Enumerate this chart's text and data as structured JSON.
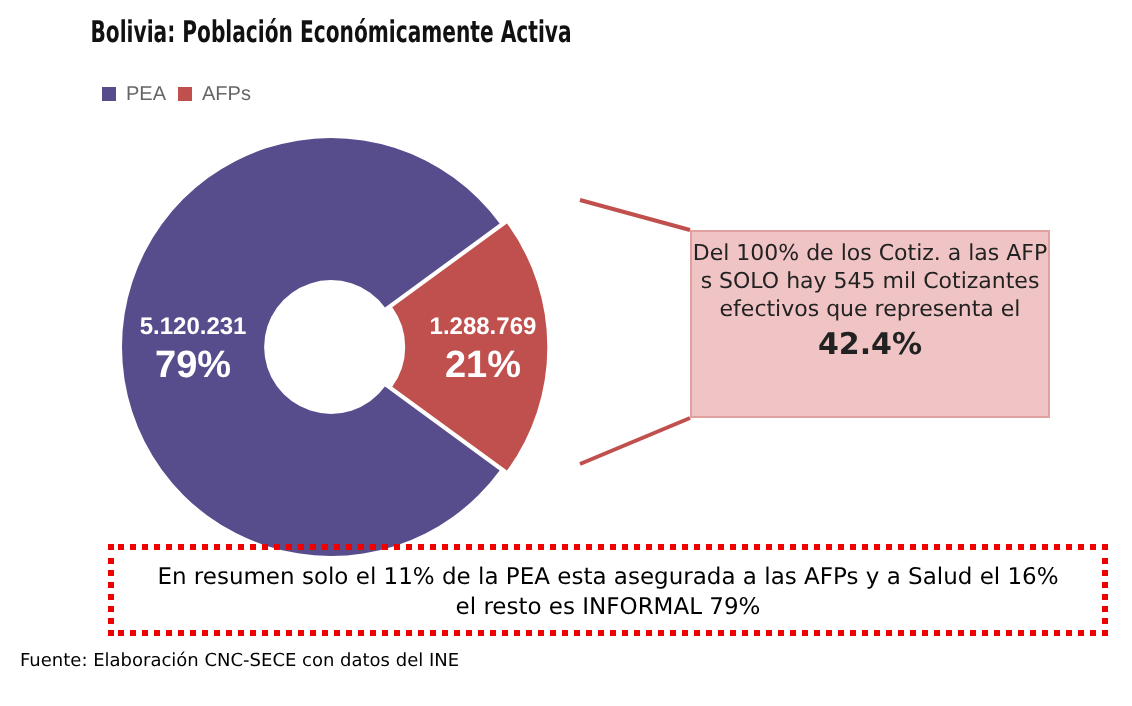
{
  "chart_data": {
    "type": "donut",
    "title": "Bolivia: Población Económicamente Activa",
    "categories": [
      "PEA",
      "AFPs"
    ],
    "values": [
      5120231,
      1288769
    ],
    "colors": [
      "#574c8c",
      "#c0504d"
    ],
    "value_labels": [
      "5.120.231\n79%",
      "1.288.769\n21%"
    ],
    "legend": "top left",
    "annotations": [
      "Del 100% de los Cotiz. a las AFP s SOLO hay 545 mil Cotizantes efectivos que representa el",
      "42.4%",
      "En resumen solo el 11% de la PEA esta asegurada a las AFPs y a Salud el 16% el resto es INFORMAL 79%",
      "Fuente: Elaboración CNC-SECE con datos del INE"
    ]
  }
}
